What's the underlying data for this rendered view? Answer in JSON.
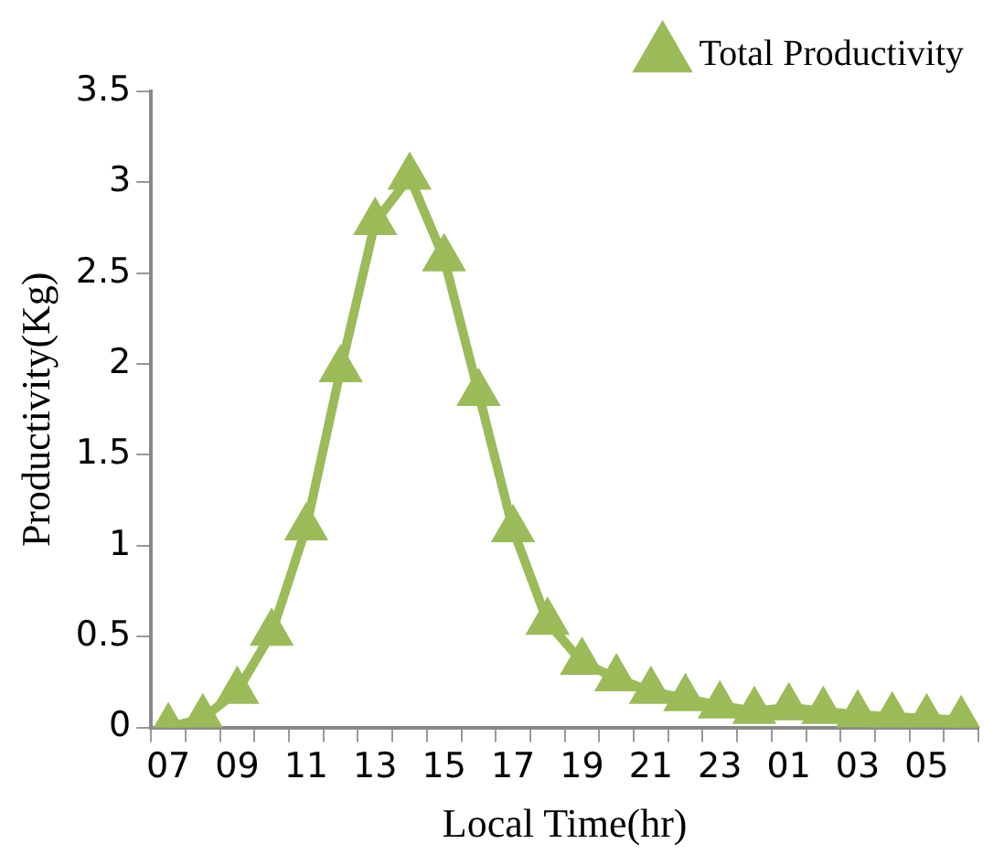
{
  "chart_data": {
    "type": "line",
    "xlabel": "Local Time(hr)",
    "ylabel": "Productivity(Kg)",
    "categories": [
      "07",
      null,
      "09",
      null,
      "11",
      null,
      "13",
      null,
      "15",
      null,
      "17",
      null,
      "19",
      null,
      "21",
      null,
      "23",
      null,
      "01",
      null,
      "03",
      null,
      "05",
      null
    ],
    "series": [
      {
        "name": "Total Productivity",
        "color": "#9bbb59",
        "values": [
          0,
          0.05,
          0.2,
          0.52,
          1.1,
          1.97,
          2.78,
          3.03,
          2.58,
          1.84,
          1.09,
          0.58,
          0.36,
          0.27,
          0.2,
          0.16,
          0.12,
          0.09,
          0.11,
          0.09,
          0.07,
          0.06,
          0.05,
          0.04
        ]
      }
    ],
    "ylim": [
      0,
      3.5
    ],
    "yticks": [
      0,
      0.5,
      1,
      1.5,
      2,
      2.5,
      3,
      3.5
    ],
    "grid": false,
    "legend": "top right",
    "marker": "triangle",
    "line_style": "solid"
  }
}
